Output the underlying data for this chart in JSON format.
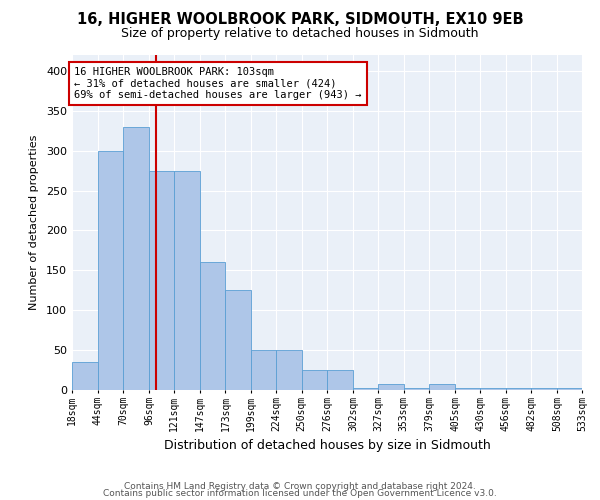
{
  "title": "16, HIGHER WOOLBROOK PARK, SIDMOUTH, EX10 9EB",
  "subtitle": "Size of property relative to detached houses in Sidmouth",
  "xlabel": "Distribution of detached houses by size in Sidmouth",
  "ylabel": "Number of detached properties",
  "annotation_lines": [
    "16 HIGHER WOOLBROOK PARK: 103sqm",
    "← 31% of detached houses are smaller (424)",
    "69% of semi-detached houses are larger (943) →"
  ],
  "property_size": 103,
  "bin_edges": [
    18,
    44,
    70,
    96,
    121,
    147,
    173,
    199,
    224,
    250,
    276,
    302,
    327,
    353,
    379,
    405,
    430,
    456,
    482,
    508,
    533
  ],
  "bar_heights": [
    35,
    300,
    330,
    275,
    275,
    160,
    125,
    50,
    50,
    25,
    25,
    3,
    8,
    3,
    8,
    3,
    3,
    3,
    3,
    3
  ],
  "bar_color": "#aec6e8",
  "bar_edge_color": "#5a9fd4",
  "red_line_color": "#cc0000",
  "background_color": "#eaf0f8",
  "grid_color": "#ffffff",
  "ylim": [
    0,
    420
  ],
  "yticks": [
    0,
    50,
    100,
    150,
    200,
    250,
    300,
    350,
    400
  ],
  "footer_line1": "Contains HM Land Registry data © Crown copyright and database right 2024.",
  "footer_line2": "Contains public sector information licensed under the Open Government Licence v3.0."
}
